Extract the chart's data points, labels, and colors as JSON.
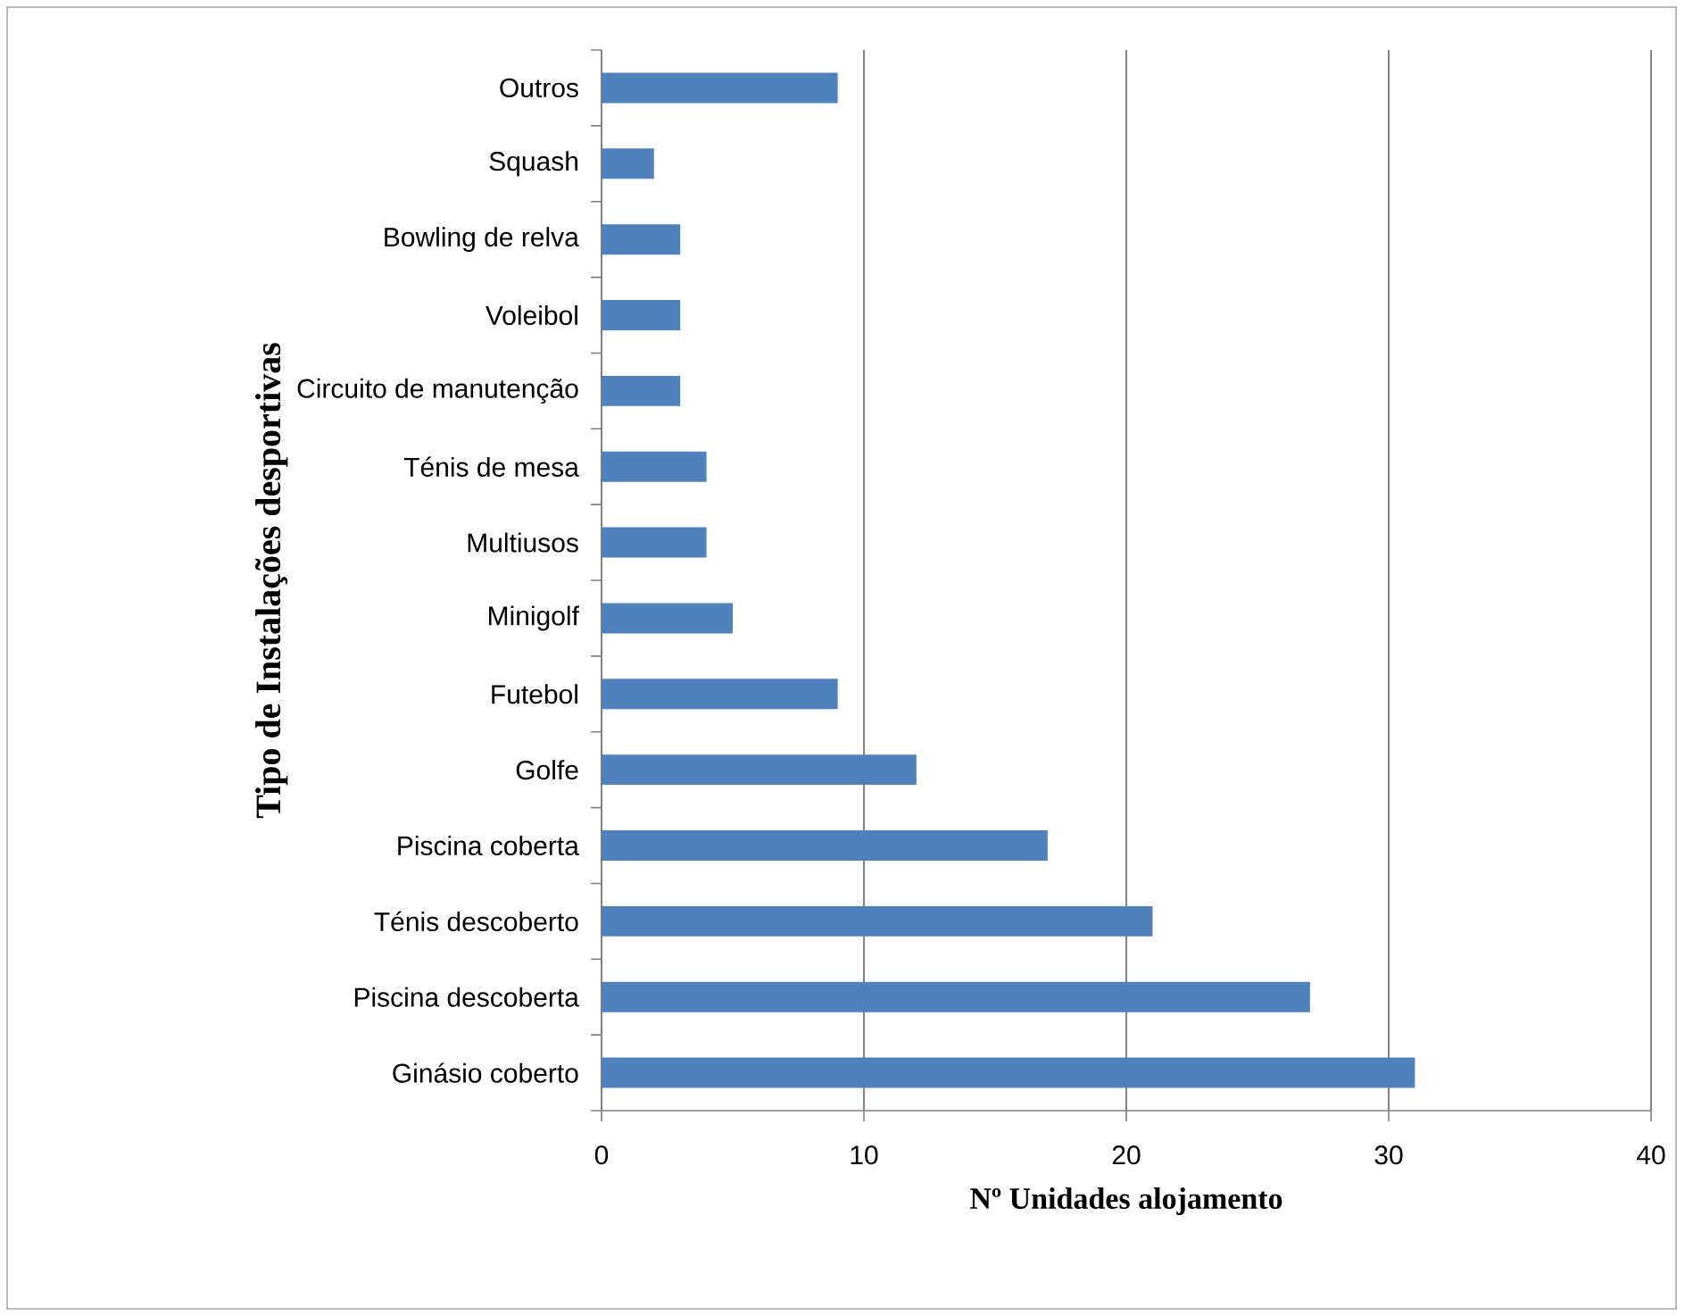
{
  "chart_data": {
    "type": "bar",
    "orientation": "horizontal",
    "xlabel": "Nº Unidades alojamento",
    "ylabel": "Tipo de Instalações desportivas",
    "categories": [
      "Outros",
      "Squash",
      "Bowling de relva",
      "Voleibol",
      "Circuito de manutenção",
      "Ténis de mesa",
      "Multiusos",
      "Minigolf",
      "Futebol",
      "Golfe",
      "Piscina coberta",
      "Ténis descoberto",
      "Piscina descoberta",
      "Ginásio coberto"
    ],
    "values": [
      9,
      2,
      3,
      3,
      3,
      4,
      4,
      5,
      9,
      12,
      17,
      21,
      27,
      31
    ],
    "color": "#4f81bd",
    "xlim": [
      0,
      40
    ],
    "xticks": [
      0,
      10,
      20,
      30,
      40
    ],
    "grid": "x"
  }
}
